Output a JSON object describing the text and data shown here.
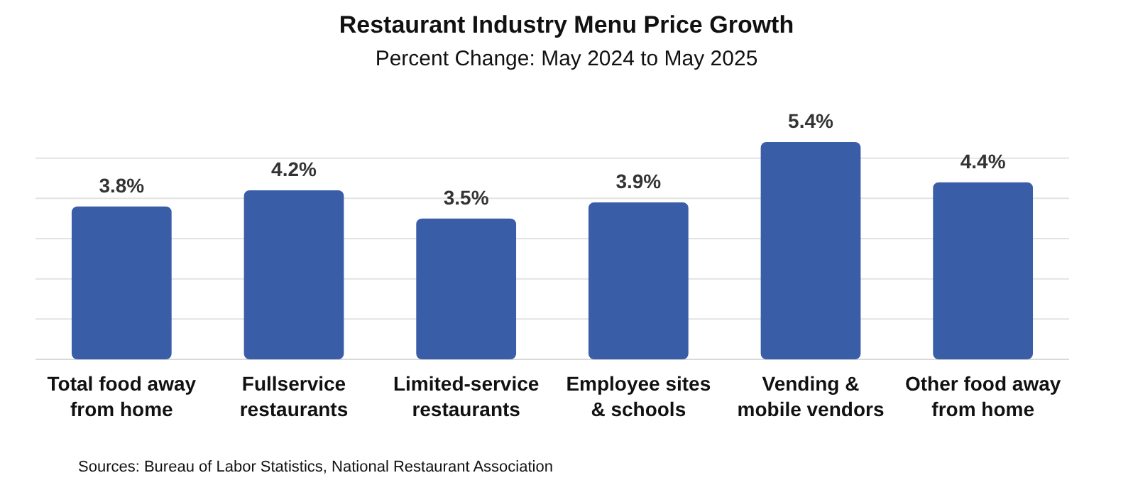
{
  "chart_data": {
    "type": "bar",
    "title": "Restaurant Industry Menu Price Growth",
    "subtitle": "Percent Change: May 2024 to May 2025",
    "categories": [
      "Total food away from home",
      "Fullservice restaurants",
      "Limited-service restaurants",
      "Employee sites & schools",
      "Vending & mobile vendors",
      "Other food away from home"
    ],
    "values": [
      3.8,
      4.2,
      3.5,
      3.9,
      5.4,
      4.4
    ],
    "value_labels": [
      "3.8%",
      "4.2%",
      "3.5%",
      "3.9%",
      "5.4%",
      "4.4%"
    ],
    "color": "#3a5da8",
    "yticks": [
      {
        "value": 0,
        "label": null
      },
      {
        "value": 1,
        "label": null
      },
      {
        "value": 2,
        "label": null
      },
      {
        "value": 3,
        "label": null
      },
      {
        "value": 4,
        "label": null
      },
      {
        "value": 5,
        "label": null
      }
    ],
    "grid": "y",
    "tick_labels": "x",
    "annotations": [
      "Sources: Bureau of Labor Statistics, National Restaurant Association"
    ]
  }
}
